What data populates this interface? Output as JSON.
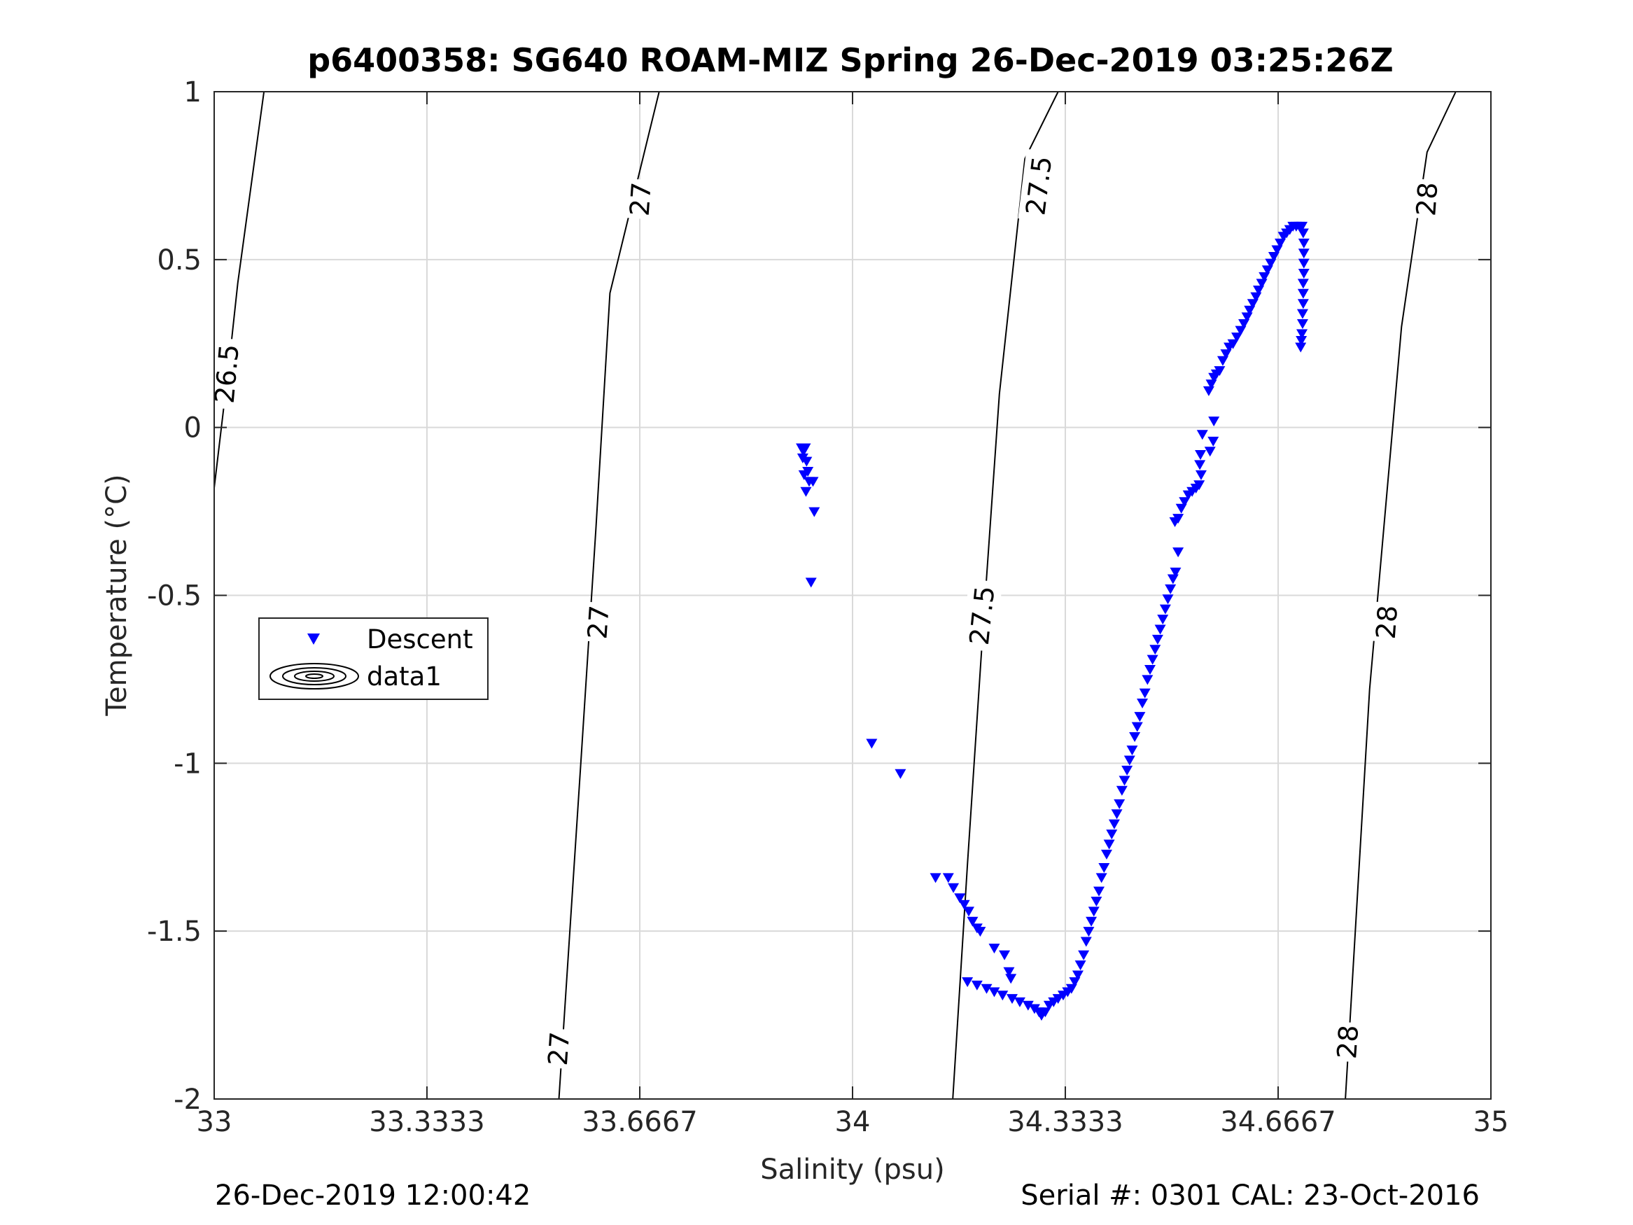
{
  "chart_data": {
    "type": "scatter",
    "title": "p6400358: SG640 ROAM-MIZ Spring 26-Dec-2019 03:25:26Z",
    "xlabel": "Salinity (psu)",
    "ylabel": "Temperature (°C)",
    "xlim": [
      33,
      35
    ],
    "ylim": [
      -2,
      1
    ],
    "xticks": [
      33,
      33.3333,
      33.6667,
      34,
      34.3333,
      34.6667,
      35
    ],
    "xtick_labels": [
      "33",
      "33.3333",
      "33.6667",
      "34",
      "34.3333",
      "34.6667",
      "35"
    ],
    "yticks": [
      -2,
      -1.5,
      -1,
      -0.5,
      0,
      0.5,
      1
    ],
    "ytick_labels": [
      "-2",
      "-1.5",
      "-1",
      "-0.5",
      "0",
      "0.5",
      "1"
    ],
    "grid": true,
    "legend": {
      "position": "left",
      "entries": [
        "Descent",
        "data1"
      ]
    },
    "colors": {
      "descent": "#0000ff",
      "contour": "#000000",
      "grid": "#d9d9d9"
    },
    "series": [
      {
        "name": "Descent",
        "marker": "triangle-down",
        "points": [
          [
            33.92,
            -0.06
          ],
          [
            33.923,
            -0.07
          ],
          [
            33.926,
            -0.06
          ],
          [
            33.922,
            -0.09
          ],
          [
            33.928,
            -0.1
          ],
          [
            33.93,
            -0.13
          ],
          [
            33.924,
            -0.14
          ],
          [
            33.932,
            -0.16
          ],
          [
            33.927,
            -0.19
          ],
          [
            33.938,
            -0.16
          ],
          [
            33.94,
            -0.25
          ],
          [
            33.935,
            -0.46
          ],
          [
            34.03,
            -0.94
          ],
          [
            34.075,
            -1.03
          ],
          [
            34.13,
            -1.34
          ],
          [
            34.15,
            -1.34
          ],
          [
            34.158,
            -1.37
          ],
          [
            34.168,
            -1.4
          ],
          [
            34.175,
            -1.42
          ],
          [
            34.182,
            -1.44
          ],
          [
            34.188,
            -1.47
          ],
          [
            34.195,
            -1.49
          ],
          [
            34.2,
            -1.5
          ],
          [
            34.222,
            -1.55
          ],
          [
            34.238,
            -1.57
          ],
          [
            34.245,
            -1.62
          ],
          [
            34.248,
            -1.64
          ],
          [
            34.18,
            -1.65
          ],
          [
            34.195,
            -1.66
          ],
          [
            34.21,
            -1.67
          ],
          [
            34.222,
            -1.68
          ],
          [
            34.235,
            -1.69
          ],
          [
            34.25,
            -1.7
          ],
          [
            34.262,
            -1.71
          ],
          [
            34.275,
            -1.72
          ],
          [
            34.285,
            -1.73
          ],
          [
            34.292,
            -1.74
          ],
          [
            34.296,
            -1.75
          ],
          [
            34.302,
            -1.74
          ],
          [
            34.308,
            -1.72
          ],
          [
            34.315,
            -1.71
          ],
          [
            34.322,
            -1.7
          ],
          [
            34.33,
            -1.69
          ],
          [
            34.337,
            -1.68
          ],
          [
            34.343,
            -1.67
          ],
          [
            34.348,
            -1.65
          ],
          [
            34.353,
            -1.63
          ],
          [
            34.357,
            -1.6
          ],
          [
            34.362,
            -1.57
          ],
          [
            34.366,
            -1.53
          ],
          [
            34.37,
            -1.5
          ],
          [
            34.374,
            -1.47
          ],
          [
            34.378,
            -1.44
          ],
          [
            34.382,
            -1.41
          ],
          [
            34.386,
            -1.38
          ],
          [
            34.39,
            -1.34
          ],
          [
            34.394,
            -1.31
          ],
          [
            34.398,
            -1.27
          ],
          [
            34.402,
            -1.24
          ],
          [
            34.406,
            -1.21
          ],
          [
            34.41,
            -1.18
          ],
          [
            34.414,
            -1.15
          ],
          [
            34.418,
            -1.12
          ],
          [
            34.422,
            -1.08
          ],
          [
            34.426,
            -1.05
          ],
          [
            34.43,
            -1.02
          ],
          [
            34.434,
            -0.99
          ],
          [
            34.438,
            -0.96
          ],
          [
            34.442,
            -0.92
          ],
          [
            34.446,
            -0.89
          ],
          [
            34.45,
            -0.86
          ],
          [
            34.454,
            -0.82
          ],
          [
            34.458,
            -0.79
          ],
          [
            34.462,
            -0.75
          ],
          [
            34.466,
            -0.72
          ],
          [
            34.47,
            -0.69
          ],
          [
            34.474,
            -0.66
          ],
          [
            34.478,
            -0.63
          ],
          [
            34.482,
            -0.6
          ],
          [
            34.486,
            -0.57
          ],
          [
            34.49,
            -0.54
          ],
          [
            34.494,
            -0.51
          ],
          [
            34.498,
            -0.48
          ],
          [
            34.502,
            -0.45
          ],
          [
            34.506,
            -0.43
          ],
          [
            34.51,
            -0.37
          ],
          [
            34.505,
            -0.28
          ],
          [
            34.51,
            -0.27
          ],
          [
            34.515,
            -0.24
          ],
          [
            34.52,
            -0.22
          ],
          [
            34.526,
            -0.2
          ],
          [
            34.532,
            -0.19
          ],
          [
            34.538,
            -0.18
          ],
          [
            34.543,
            -0.17
          ],
          [
            34.546,
            -0.14
          ],
          [
            34.544,
            -0.11
          ],
          [
            34.545,
            -0.08
          ],
          [
            34.548,
            -0.02
          ],
          [
            34.56,
            -0.07
          ],
          [
            34.565,
            -0.04
          ],
          [
            34.566,
            0.02
          ],
          [
            34.558,
            0.11
          ],
          [
            34.562,
            0.13
          ],
          [
            34.566,
            0.15
          ],
          [
            34.57,
            0.16
          ],
          [
            34.575,
            0.17
          ],
          [
            34.58,
            0.2
          ],
          [
            34.585,
            0.22
          ],
          [
            34.59,
            0.24
          ],
          [
            34.596,
            0.25
          ],
          [
            34.602,
            0.27
          ],
          [
            34.608,
            0.29
          ],
          [
            34.613,
            0.31
          ],
          [
            34.618,
            0.33
          ],
          [
            34.622,
            0.35
          ],
          [
            34.627,
            0.37
          ],
          [
            34.632,
            0.39
          ],
          [
            34.636,
            0.41
          ],
          [
            34.641,
            0.43
          ],
          [
            34.645,
            0.45
          ],
          [
            34.65,
            0.47
          ],
          [
            34.655,
            0.49
          ],
          [
            34.66,
            0.51
          ],
          [
            34.665,
            0.53
          ],
          [
            34.67,
            0.55
          ],
          [
            34.675,
            0.57
          ],
          [
            34.68,
            0.58
          ],
          [
            34.685,
            0.59
          ],
          [
            34.69,
            0.6
          ],
          [
            34.695,
            0.6
          ],
          [
            34.7,
            0.6
          ],
          [
            34.704,
            0.6
          ],
          [
            34.706,
            0.58
          ],
          [
            34.707,
            0.55
          ],
          [
            34.707,
            0.52
          ],
          [
            34.707,
            0.49
          ],
          [
            34.707,
            0.46
          ],
          [
            34.706,
            0.43
          ],
          [
            34.706,
            0.4
          ],
          [
            34.706,
            0.37
          ],
          [
            34.705,
            0.34
          ],
          [
            34.705,
            0.31
          ],
          [
            34.704,
            0.28
          ],
          [
            34.703,
            0.26
          ],
          [
            34.702,
            0.24
          ]
        ]
      }
    ],
    "isopycnals": [
      {
        "label": "26.5",
        "points": [
          [
            33.0,
            -0.18
          ],
          [
            33.025,
            0.22
          ],
          [
            33.037,
            0.43
          ],
          [
            33.078,
            1.0
          ]
        ]
      },
      {
        "label": "27",
        "points": [
          [
            33.54,
            -2.0
          ],
          [
            33.575,
            -0.98
          ],
          [
            33.598,
            -0.3
          ],
          [
            33.62,
            0.4
          ],
          [
            33.697,
            1.0
          ]
        ]
      },
      {
        "label": "27.5",
        "points": [
          [
            34.157,
            -2.0
          ],
          [
            34.18,
            -1.3
          ],
          [
            34.205,
            -0.58
          ],
          [
            34.23,
            0.1
          ],
          [
            34.27,
            0.8
          ],
          [
            34.322,
            1.0
          ]
        ]
      },
      {
        "label": "28",
        "points": [
          [
            34.772,
            -2.0
          ],
          [
            34.81,
            -0.78
          ],
          [
            34.86,
            0.3
          ],
          [
            34.9,
            0.82
          ],
          [
            34.945,
            1.0
          ]
        ]
      }
    ],
    "contour_labels": [
      {
        "text": "26.5",
        "x": 33.02,
        "y": 0.16,
        "angle": -85
      },
      {
        "text": "27",
        "x": 33.54,
        "y": -1.85,
        "angle": -86
      },
      {
        "text": "27",
        "x": 33.602,
        "y": -0.58,
        "angle": -86
      },
      {
        "text": "27",
        "x": 33.668,
        "y": 0.68,
        "angle": -86
      },
      {
        "text": "27.5",
        "x": 34.203,
        "y": -0.56,
        "angle": -84
      },
      {
        "text": "27.5",
        "x": 34.292,
        "y": 0.72,
        "angle": -83
      },
      {
        "text": "28",
        "x": 34.776,
        "y": -1.83,
        "angle": -86
      },
      {
        "text": "28",
        "x": 34.837,
        "y": -0.58,
        "angle": -86
      },
      {
        "text": "28",
        "x": 34.9,
        "y": 0.68,
        "angle": -86
      }
    ]
  },
  "footer": {
    "timestamp": "26-Dec-2019 12:00:42",
    "serial": "Serial #: 0301  CAL: 23-Oct-2016"
  }
}
